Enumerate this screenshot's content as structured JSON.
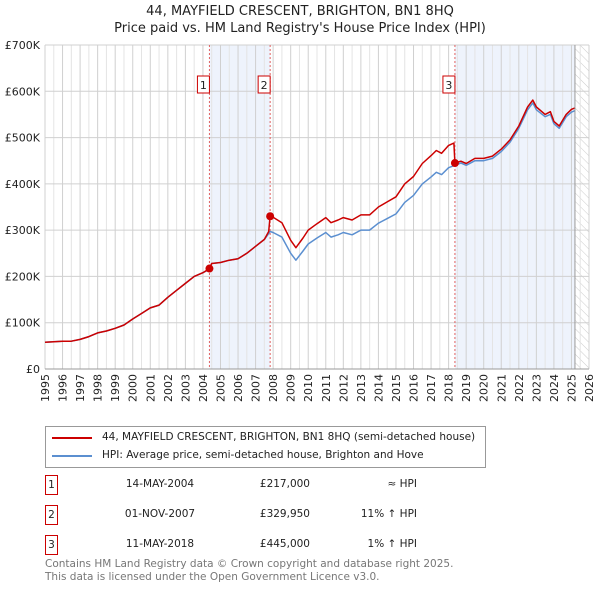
{
  "chart_data": {
    "type": "line",
    "title": "44, MAYFIELD CRESCENT, BRIGHTON, BN1 8HQ",
    "subtitle": "Price paid vs. HM Land Registry's House Price Index (HPI)",
    "xlim": [
      1995,
      2026
    ],
    "ylim": [
      0,
      700000
    ],
    "x_ticks": [
      "1995",
      "1996",
      "1997",
      "1998",
      "1999",
      "2000",
      "2001",
      "2002",
      "2003",
      "2004",
      "2005",
      "2006",
      "2007",
      "2008",
      "2009",
      "2010",
      "2011",
      "2012",
      "2013",
      "2014",
      "2015",
      "2016",
      "2017",
      "2018",
      "2019",
      "2020",
      "2021",
      "2022",
      "2023",
      "2024",
      "2025",
      "2026"
    ],
    "y_ticks": [
      {
        "value": 0,
        "label": "£0"
      },
      {
        "value": 100000,
        "label": "£100K"
      },
      {
        "value": 200000,
        "label": "£200K"
      },
      {
        "value": 300000,
        "label": "£300K"
      },
      {
        "value": 400000,
        "label": "£400K"
      },
      {
        "value": 500000,
        "label": "£500K"
      },
      {
        "value": 600000,
        "label": "£600K"
      },
      {
        "value": 700000,
        "label": "£700K"
      }
    ],
    "grid": true,
    "shaded_periods": [
      [
        2004.37,
        2007.83
      ],
      [
        2018.36,
        2025.2
      ]
    ],
    "future_hatch_from": 2025.2,
    "series": [
      {
        "name": "44, MAYFIELD CRESCENT, BRIGHTON, BN1 8HQ (semi-detached house)",
        "color": "#cc0000",
        "x": [
          1995,
          1995.5,
          1996,
          1996.5,
          1997,
          1997.5,
          1998,
          1998.5,
          1999,
          1999.5,
          2000,
          2000.5,
          2001,
          2001.5,
          2002,
          2002.5,
          2003,
          2003.5,
          2004,
          2004.37,
          2004.5,
          2005,
          2005.5,
          2006,
          2006.5,
          2007,
          2007.5,
          2007.75,
          2007.83,
          2008,
          2008.5,
          2009,
          2009.3,
          2009.7,
          2010,
          2010.5,
          2011,
          2011.3,
          2011.7,
          2012,
          2012.5,
          2013,
          2013.5,
          2014,
          2014.5,
          2015,
          2015.5,
          2016,
          2016.5,
          2017,
          2017.3,
          2017.6,
          2018,
          2018.3,
          2018.36,
          2018.7,
          2019,
          2019.5,
          2020,
          2020.5,
          2021,
          2021.5,
          2022,
          2022.5,
          2022.8,
          2023,
          2023.5,
          2023.8,
          2024,
          2024.3,
          2024.7,
          2025,
          2025.2
        ],
        "y": [
          58,
          59,
          60,
          60,
          64,
          70,
          78,
          82,
          88,
          95,
          108,
          120,
          132,
          138,
          155,
          170,
          185,
          200,
          208,
          217,
          228,
          230,
          235,
          238,
          250,
          265,
          280,
          297,
          330,
          328,
          316,
          278,
          262,
          283,
          300,
          314,
          327,
          316,
          322,
          327,
          322,
          333,
          333,
          350,
          361,
          372,
          400,
          416,
          444,
          461,
          472,
          466,
          483,
          488,
          445,
          449,
          444,
          455,
          455,
          460,
          475,
          495,
          525,
          566,
          581,
          566,
          550,
          556,
          535,
          525,
          550,
          561,
          564
        ],
        "y_unit": "thousand GBP"
      },
      {
        "name": "HPI: Average price, semi-detached house, Brighton and Hove",
        "color": "#5b8fd0",
        "x": [
          1995,
          1995.5,
          1996,
          1996.5,
          1997,
          1997.5,
          1998,
          1998.5,
          1999,
          1999.5,
          2000,
          2000.5,
          2001,
          2001.5,
          2002,
          2002.5,
          2003,
          2003.5,
          2004,
          2004.37,
          2004.5,
          2005,
          2005.5,
          2006,
          2006.5,
          2007,
          2007.5,
          2007.83,
          2008,
          2008.5,
          2009,
          2009.3,
          2009.7,
          2010,
          2010.5,
          2011,
          2011.3,
          2011.7,
          2012,
          2012.5,
          2013,
          2013.5,
          2014,
          2014.5,
          2015,
          2015.5,
          2016,
          2016.5,
          2017,
          2017.3,
          2017.6,
          2018,
          2018.36,
          2018.7,
          2019,
          2019.5,
          2020,
          2020.5,
          2021,
          2021.5,
          2022,
          2022.5,
          2022.8,
          2023,
          2023.5,
          2023.8,
          2024,
          2024.3,
          2024.7,
          2025,
          2025.2
        ],
        "y": [
          58,
          59,
          60,
          60,
          64,
          70,
          78,
          82,
          88,
          95,
          108,
          120,
          132,
          138,
          155,
          170,
          185,
          200,
          208,
          215,
          228,
          230,
          235,
          238,
          250,
          265,
          280,
          297,
          295,
          285,
          250,
          235,
          255,
          270,
          283,
          295,
          285,
          290,
          295,
          290,
          300,
          300,
          315,
          325,
          335,
          360,
          375,
          400,
          415,
          425,
          420,
          435,
          440,
          445,
          440,
          450,
          450,
          455,
          470,
          490,
          520,
          560,
          575,
          560,
          545,
          550,
          530,
          520,
          545,
          555,
          558
        ],
        "y_unit": "thousand GBP"
      }
    ],
    "sales": [
      {
        "label": "1",
        "x": 2004.37,
        "y": 217,
        "date": "14-MAY-2004",
        "price": "£217,000",
        "hpi": "≈ HPI"
      },
      {
        "label": "2",
        "x": 2007.83,
        "y": 330,
        "date": "01-NOV-2007",
        "price": "£329,950",
        "hpi": "11% ↑ HPI"
      },
      {
        "label": "3",
        "x": 2018.36,
        "y": 445,
        "date": "11-MAY-2018",
        "price": "£445,000",
        "hpi": "1% ↑ HPI"
      }
    ],
    "legend_position": "below"
  },
  "legend": {
    "red": "44, MAYFIELD CRESCENT, BRIGHTON, BN1 8HQ (semi-detached house)",
    "blue": "HPI: Average price, semi-detached house, Brighton and Hove"
  },
  "footer": {
    "line1": "Contains HM Land Registry data © Crown copyright and database right 2025.",
    "line2": "This data is licensed under the Open Government Licence v3.0."
  }
}
